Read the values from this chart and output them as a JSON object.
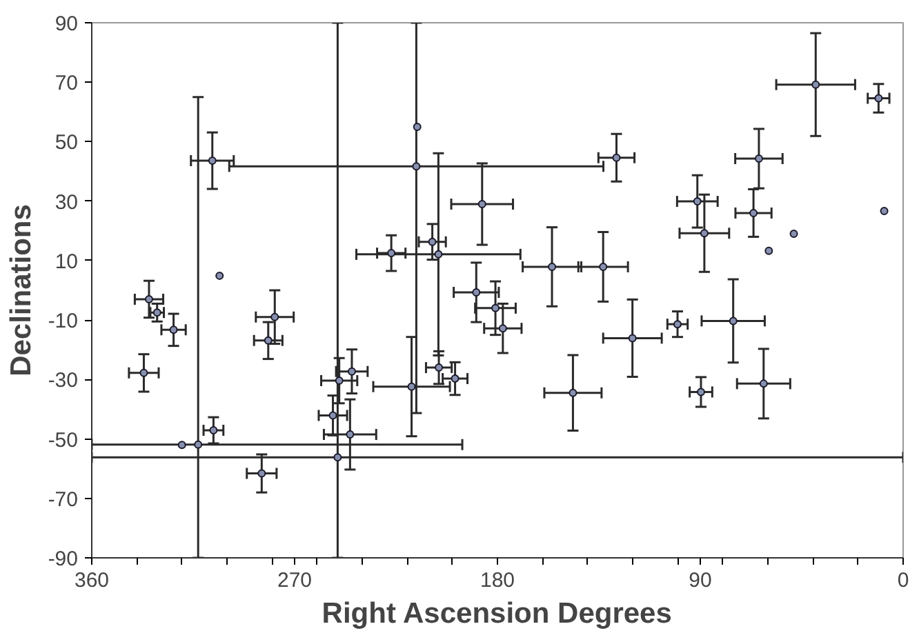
{
  "chart_data": {
    "type": "scatter",
    "xlabel": "Right Ascension Degrees",
    "ylabel": "Declinations",
    "xlim": [
      360,
      0
    ],
    "ylim": [
      -90,
      90
    ],
    "xticks": [
      360,
      {
        "value": 340,
        "label": null
      },
      {
        "value": 320,
        "label": null
      },
      {
        "value": 300,
        "label": null
      },
      {
        "value": 280,
        "label": null
      },
      270,
      {
        "value": 260,
        "label": null
      },
      {
        "value": 240,
        "label": null
      },
      {
        "value": 220,
        "label": null
      },
      {
        "value": 200,
        "label": null
      },
      180,
      {
        "value": 160,
        "label": null
      },
      {
        "value": 140,
        "label": null
      },
      {
        "value": 120,
        "label": null
      },
      {
        "value": 100,
        "label": null
      },
      90,
      {
        "value": 80,
        "label": null
      },
      {
        "value": 60,
        "label": null
      },
      {
        "value": 40,
        "label": null
      },
      {
        "value": 20,
        "label": null
      },
      0
    ],
    "yticks": [
      -90,
      -70,
      -50,
      -30,
      -10,
      10,
      30,
      50,
      70,
      90
    ],
    "grid": false,
    "marker": "circle",
    "series": [
      {
        "color": "#2a2a2a",
        "x": [
          306.5,
          312.8,
          320,
          216,
          215.6,
          303.3,
          127.2,
          186.8,
          227.1,
          208.9,
          206.2,
          155.8,
          133.1,
          189.4,
          180.9,
          177.6,
          38.8,
          10.9,
          8.4,
          64,
          66.4,
          91.3,
          88.2,
          48.5,
          59.6,
          75.4,
          120.1,
          100.1,
          89.7,
          61.9,
          146.5,
          218.1,
          206,
          198.8,
          245.4,
          334.6,
          331,
          323.7,
          336.9,
          306,
          284.6,
          278.8,
          281.7,
          250.2,
          244.6,
          253,
          250.9
        ],
        "values": [
          43.6,
          -51.9,
          -52,
          41.7,
          55,
          4.9,
          44.6,
          29,
          12.5,
          16.3,
          12.1,
          7.9,
          7.9,
          -0.7,
          -6,
          -12.8,
          69.2,
          64.6,
          26.7,
          44.3,
          26,
          29.9,
          19.2,
          19,
          13.3,
          -10.3,
          -16.1,
          -11.4,
          -34.2,
          -31.4,
          -34.5,
          -32.4,
          -26,
          -29.7,
          -48.5,
          -3,
          -7.5,
          -13.3,
          -27.8,
          -47.1,
          -61.6,
          -9,
          -16.9,
          -30.4,
          -27.3,
          -42.1,
          -56.2
        ],
        "errors": [
          9.5,
          [
            -90,
            65
          ],
          null,
          [
            -41.3,
            90
          ],
          null,
          null,
          8,
          13.7,
          6,
          6,
          34,
          13.3,
          11.7,
          10,
          9,
          8.3,
          17.3,
          4.8,
          null,
          10,
          8,
          8.8,
          13,
          null,
          null,
          14,
          13,
          4.3,
          5,
          11.7,
          12.7,
          16.7,
          5.5,
          5.5,
          11.8,
          6.2,
          3,
          5.4,
          6.3,
          4.4,
          6.4,
          9,
          6.2,
          7.6,
          7.4,
          6.7,
          [
            -90,
            90
          ]
        ],
        "xerrors": [
          9.5,
          [
            195.6,
            360
          ],
          null,
          83,
          null,
          null,
          8,
          13.7,
          6.3,
          6,
          36.4,
          13,
          11,
          10,
          9,
          8.3,
          17.5,
          4.8,
          null,
          10.5,
          8,
          9,
          11,
          null,
          null,
          14,
          13,
          4.5,
          5,
          11.8,
          12.7,
          17,
          5.7,
          5.5,
          11.6,
          6.3,
          3,
          5.4,
          6.6,
          4.4,
          6.6,
          8.4,
          6.3,
          8,
          7,
          6.3,
          [
            0,
            360
          ]
        ]
      }
    ]
  }
}
